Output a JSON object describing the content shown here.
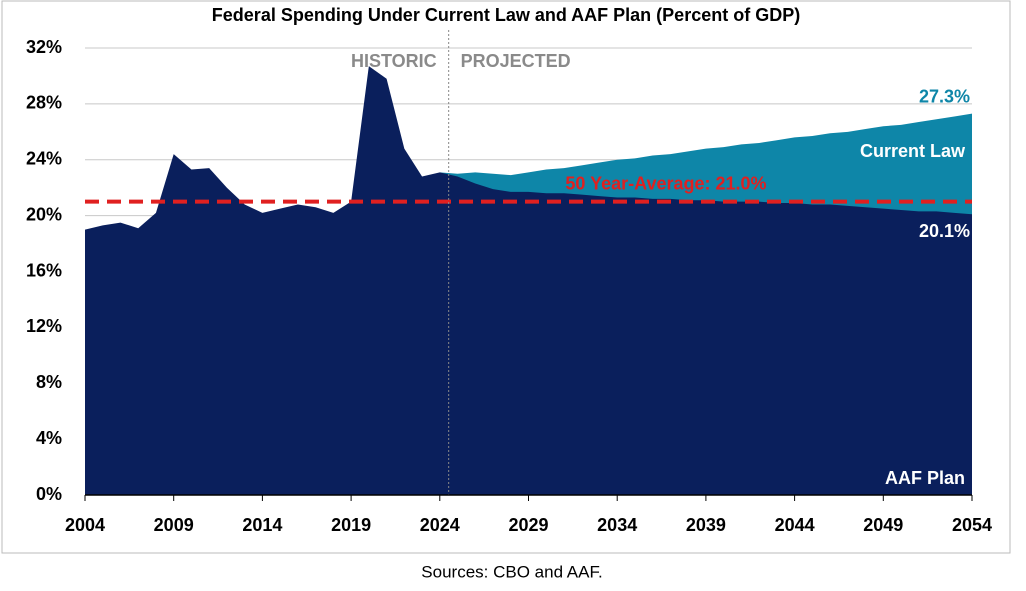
{
  "chart_data": {
    "type": "area",
    "title": "Federal Spending Under Current Law and AAF Plan (Percent of GDP)",
    "source": "Sources: CBO and AAF.",
    "x": [
      2004,
      2005,
      2006,
      2007,
      2008,
      2009,
      2010,
      2011,
      2012,
      2013,
      2014,
      2015,
      2016,
      2017,
      2018,
      2019,
      2020,
      2021,
      2022,
      2023,
      2024,
      2025,
      2026,
      2027,
      2028,
      2029,
      2030,
      2031,
      2032,
      2033,
      2034,
      2035,
      2036,
      2037,
      2038,
      2039,
      2040,
      2041,
      2042,
      2043,
      2044,
      2045,
      2046,
      2047,
      2048,
      2049,
      2050,
      2051,
      2052,
      2053,
      2054
    ],
    "series": [
      {
        "name": "Current Law",
        "color": "#0e86a8",
        "label_color": "#ffffff",
        "value_label_color": "#0e86a8",
        "values": [
          null,
          null,
          null,
          null,
          null,
          null,
          null,
          null,
          null,
          null,
          null,
          null,
          null,
          null,
          null,
          null,
          null,
          null,
          null,
          null,
          23.1,
          23.0,
          23.1,
          23.0,
          22.9,
          23.1,
          23.3,
          23.4,
          23.6,
          23.8,
          24.0,
          24.1,
          24.3,
          24.4,
          24.6,
          24.8,
          24.9,
          25.1,
          25.2,
          25.4,
          25.6,
          25.7,
          25.9,
          26.0,
          26.2,
          26.4,
          26.5,
          26.7,
          26.9,
          27.1,
          27.3
        ],
        "value_labels": [
          null,
          null,
          null,
          null,
          null,
          null,
          null,
          null,
          null,
          null,
          null,
          null,
          null,
          null,
          null,
          null,
          null,
          null,
          null,
          null,
          null,
          null,
          null,
          null,
          null,
          null,
          null,
          null,
          null,
          null,
          null,
          null,
          null,
          null,
          null,
          null,
          null,
          null,
          null,
          null,
          null,
          null,
          null,
          null,
          null,
          null,
          null,
          null,
          null,
          null,
          "27.3%"
        ]
      },
      {
        "name": "AAF Plan",
        "color": "#0a1f5c",
        "label_color": "#ffffff",
        "value_label_color": "#ffffff",
        "values": [
          19.0,
          19.3,
          19.5,
          19.1,
          20.2,
          24.4,
          23.3,
          23.4,
          22.0,
          20.8,
          20.2,
          20.5,
          20.8,
          20.6,
          20.2,
          21.0,
          30.7,
          29.8,
          24.8,
          22.8,
          23.1,
          22.8,
          22.3,
          21.9,
          21.7,
          21.7,
          21.6,
          21.6,
          21.5,
          21.4,
          21.3,
          21.3,
          21.2,
          21.2,
          21.1,
          21.1,
          21.0,
          21.0,
          21.0,
          20.9,
          20.9,
          20.8,
          20.8,
          20.7,
          20.6,
          20.5,
          20.4,
          20.3,
          20.3,
          20.2,
          20.1
        ],
        "value_labels": [
          null,
          null,
          null,
          null,
          null,
          null,
          null,
          null,
          null,
          null,
          null,
          null,
          null,
          null,
          null,
          null,
          null,
          null,
          null,
          null,
          null,
          null,
          null,
          null,
          null,
          null,
          null,
          null,
          null,
          null,
          null,
          null,
          null,
          null,
          null,
          null,
          null,
          null,
          null,
          null,
          null,
          null,
          null,
          null,
          null,
          null,
          null,
          null,
          null,
          null,
          "20.1%"
        ]
      }
    ],
    "average": {
      "value": 21.0,
      "label": "50 Year-Average: 21.0%",
      "color": "#e02020"
    },
    "divider": {
      "value": 2024.5,
      "left_label": "HISTORIC",
      "right_label": "PROJECTED"
    },
    "xlim": [
      2004,
      2054
    ],
    "xticks": [
      2004,
      2009,
      2014,
      2019,
      2024,
      2029,
      2034,
      2039,
      2044,
      2049,
      2054
    ],
    "ylim": [
      0,
      32
    ],
    "yticks": [
      {
        "value": 0,
        "label": "0%"
      },
      {
        "value": 4,
        "label": "4%"
      },
      {
        "value": 8,
        "label": "8%"
      },
      {
        "value": 12,
        "label": "12%"
      },
      {
        "value": 16,
        "label": "16%"
      },
      {
        "value": 20,
        "label": "20%"
      },
      {
        "value": 24,
        "label": "24%"
      },
      {
        "value": 28,
        "label": "28%"
      },
      {
        "value": 32,
        "label": "32%"
      }
    ],
    "grid": true
  }
}
